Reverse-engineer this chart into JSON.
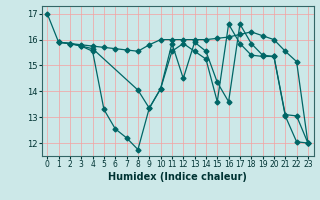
{
  "title": "",
  "xlabel": "Humidex (Indice chaleur)",
  "ylabel": "",
  "background_color": "#cce8e8",
  "grid_color": "#f5a0a0",
  "line_color": "#006666",
  "xlim": [
    -0.5,
    23.5
  ],
  "ylim": [
    11.5,
    17.3
  ],
  "yticks": [
    12,
    13,
    14,
    15,
    16,
    17
  ],
  "xticks": [
    0,
    1,
    2,
    3,
    4,
    5,
    6,
    7,
    8,
    9,
    10,
    11,
    12,
    13,
    14,
    15,
    16,
    17,
    18,
    19,
    20,
    21,
    22,
    23
  ],
  "series": [
    {
      "x": [
        0,
        1,
        2,
        3,
        4,
        5,
        6,
        7,
        8,
        9,
        10,
        11,
        12,
        13,
        14,
        15,
        16,
        17,
        18,
        19,
        20,
        21,
        22,
        23
      ],
      "y": [
        17.0,
        15.9,
        15.85,
        15.75,
        15.55,
        13.3,
        12.55,
        12.2,
        11.75,
        13.35,
        14.1,
        15.85,
        14.5,
        15.9,
        15.55,
        14.35,
        13.6,
        16.6,
        15.85,
        15.4,
        15.35,
        13.05,
        12.05,
        12.0
      ]
    },
    {
      "x": [
        1,
        2,
        3,
        4,
        5,
        6,
        7,
        8,
        9,
        10,
        11,
        12,
        13,
        14,
        15,
        16,
        17,
        18,
        19,
        20,
        21,
        22,
        23
      ],
      "y": [
        15.9,
        15.85,
        15.8,
        15.75,
        15.7,
        15.65,
        15.6,
        15.55,
        15.8,
        16.0,
        16.0,
        16.0,
        16.0,
        16.0,
        16.05,
        16.1,
        16.2,
        16.3,
        16.15,
        16.0,
        15.55,
        15.15,
        12.0
      ]
    },
    {
      "x": [
        1,
        2,
        3,
        4,
        8,
        9,
        10,
        11,
        12,
        13,
        14,
        15,
        16,
        17,
        18,
        19,
        20,
        21,
        22,
        23
      ],
      "y": [
        15.9,
        15.85,
        15.75,
        15.65,
        14.05,
        13.35,
        14.1,
        15.55,
        15.85,
        15.55,
        15.25,
        13.6,
        16.6,
        15.85,
        15.4,
        15.35,
        15.35,
        13.1,
        13.05,
        12.0
      ]
    }
  ],
  "marker": "D",
  "markersize": 2.5,
  "linewidth": 0.9,
  "tick_labelsize": 6,
  "xlabel_fontsize": 7,
  "figsize": [
    3.2,
    2.0
  ],
  "dpi": 100
}
